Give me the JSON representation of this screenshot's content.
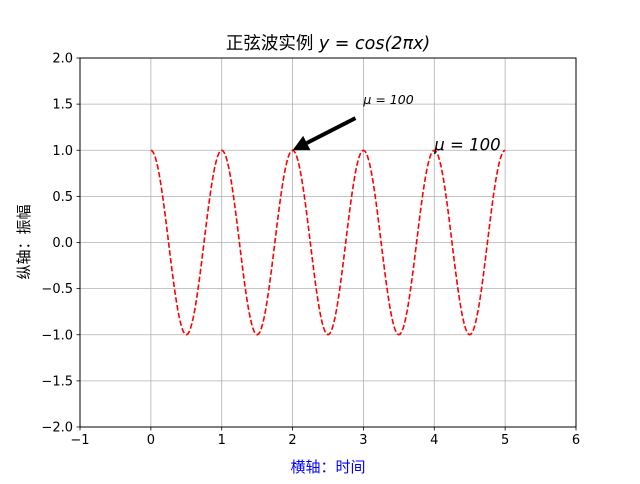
{
  "chart_data": {
    "type": "line",
    "title": "正弦波实例 y = cos(2πx)",
    "title_parts": {
      "prefix": "正弦波实例 ",
      "expr": "y = cos(2πx)"
    },
    "xlabel": "横轴：时间",
    "ylabel": "纵轴：振幅",
    "xlim": [
      -1,
      6
    ],
    "ylim": [
      -2.0,
      2.0
    ],
    "grid": true,
    "xticks": [
      -1,
      0,
      1,
      2,
      3,
      4,
      5,
      6
    ],
    "xtick_labels": [
      "−1",
      "0",
      "1",
      "2",
      "3",
      "4",
      "5",
      "6"
    ],
    "yticks": [
      -2.0,
      -1.5,
      -1.0,
      -0.5,
      0.0,
      0.5,
      1.0,
      1.5,
      2.0
    ],
    "ytick_labels": [
      "−2.0",
      "−1.5",
      "−1.0",
      "−0.5",
      "0.0",
      "0.5",
      "1.0",
      "1.5",
      "2.0"
    ],
    "series": [
      {
        "function": "cos(2*pi*x)",
        "x_range": [
          0,
          5
        ],
        "samples": 251,
        "color": "#ff0000",
        "linestyle": "dashed"
      }
    ],
    "annotations": [
      {
        "text": "μ = 100",
        "text_x": 3.0,
        "text_y": 1.5,
        "arrow_to": [
          2.0,
          1.0
        ],
        "arrow_color": "#000000",
        "font": "small"
      },
      {
        "text": "μ = 100",
        "text_x": 4.0,
        "text_y": 1.0,
        "font": "large"
      }
    ],
    "colors": {
      "xlabel": "#0000ff",
      "ylabel": "#000000",
      "grid": "#b0b0b0",
      "axes": "#000000"
    }
  }
}
